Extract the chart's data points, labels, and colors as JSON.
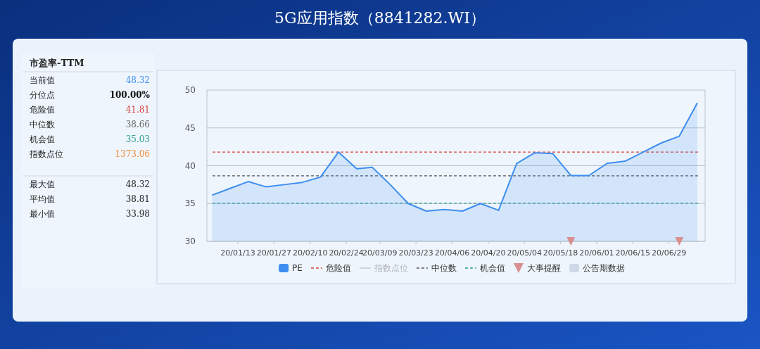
{
  "chart_data": [
    {
      "type": "other",
      "title": "市盈率-TTM",
      "categories": [
        "当前值",
        "分位点",
        "危险值",
        "中位数",
        "机会值",
        "指数点位",
        "最大值",
        "平均值",
        "最小值"
      ],
      "value_labels": [
        "48.32",
        "100.00%",
        "41.81",
        "38.66",
        "35.03",
        "1373.06",
        "48.32",
        "38.81",
        "33.98"
      ],
      "colors": [
        "#3d8ef0",
        "#111111",
        "#d9413d",
        "#666666",
        "#2e9e8f",
        "#ef8c3a",
        "#222222",
        "#222222",
        "#222222"
      ]
    },
    {
      "type": "area",
      "title": "5G应用指数（8841282.WI）",
      "x": [
        "--01-03",
        "--01-10",
        "--01-17",
        "--01-24",
        "--01-31",
        "--02-07",
        "--02-14",
        "--02-21",
        "--02-28",
        "--03-06",
        "--03-13",
        "--03-20",
        "--03-27",
        "--04-03",
        "--04-10",
        "--04-17",
        "--04-24",
        "--05-01",
        "--05-08",
        "--05-15",
        "--05-22",
        "--05-29",
        "--06-05",
        "--06-12",
        "--06-19",
        "--06-26",
        "--07-03",
        "--07-10"
      ],
      "series": [
        {
          "name": "PE",
          "type": "area",
          "color": "#3d8ef0",
          "values": [
            36.1,
            37.0,
            37.9,
            37.2,
            37.5,
            37.8,
            38.5,
            41.8,
            39.6,
            39.8,
            37.5,
            35.0,
            34.0,
            34.2,
            34.0,
            35.0,
            34.1,
            40.3,
            41.7,
            41.6,
            38.7,
            38.7,
            40.3,
            40.6,
            41.8,
            43.0,
            43.9,
            48.3
          ]
        },
        {
          "name": "指数点位",
          "type": "line",
          "color": "#c5c9cf",
          "values": [
            null,
            null,
            null,
            null,
            null,
            null,
            null,
            null,
            null,
            null,
            null,
            null,
            null,
            null,
            null,
            null,
            null,
            null,
            null,
            null,
            null,
            null,
            null,
            null,
            null,
            null,
            null,
            null
          ]
        },
        {
          "name": "大事提醒",
          "type": "scatter",
          "marker": "triangle",
          "color": "#d98f8f",
          "x": [
            "--05-22",
            "--07-03"
          ],
          "values": [
            30,
            30
          ]
        },
        {
          "name": "公告期数据",
          "type": "bar",
          "color": "#cdd9e8",
          "values": [
            null,
            null,
            null,
            null,
            null,
            null,
            null,
            null,
            null,
            null,
            null,
            null,
            null,
            null,
            null,
            null,
            null,
            null,
            null,
            null,
            null,
            null,
            null,
            null,
            null,
            null,
            null,
            null
          ]
        }
      ],
      "ref_lines": [
        {
          "axis": "y",
          "value": 41.81,
          "label": "危险值",
          "color": "#d9413d",
          "line_style": "dashed"
        },
        {
          "axis": "y",
          "value": 38.66,
          "label": "中位数",
          "color": "#555555",
          "line_style": "dashed"
        },
        {
          "axis": "y",
          "value": 35.03,
          "label": "机会值",
          "color": "#2e9e8f",
          "line_style": "dashed"
        }
      ],
      "xlim": [
        "--01-01",
        "--07-13"
      ],
      "xticks": [
        {
          "value": "--01-13",
          "label": "20/01/13"
        },
        {
          "value": "--01-27",
          "label": "20/01/27"
        },
        {
          "value": "--02-10",
          "label": "20/02/10"
        },
        {
          "value": "--02-24",
          "label": "20/02/24"
        },
        {
          "value": "--03-09",
          "label": "20/03/09"
        },
        {
          "value": "--03-23",
          "label": "20/03/23"
        },
        {
          "value": "--04-06",
          "label": "20/04/06"
        },
        {
          "value": "--04-20",
          "label": "20/04/20"
        },
        {
          "value": "--05-04",
          "label": "20/05/04"
        },
        {
          "value": "--05-18",
          "label": "20/05/18"
        },
        {
          "value": "--06-01",
          "label": "20/06/01"
        },
        {
          "value": "--06-15",
          "label": "20/06/15"
        },
        {
          "value": "--06-29",
          "label": "20/06/29"
        }
      ],
      "ylim": [
        30,
        50
      ],
      "yticks": [
        30,
        35,
        40,
        45,
        50
      ],
      "grid": "y",
      "legend": "bottom"
    }
  ]
}
